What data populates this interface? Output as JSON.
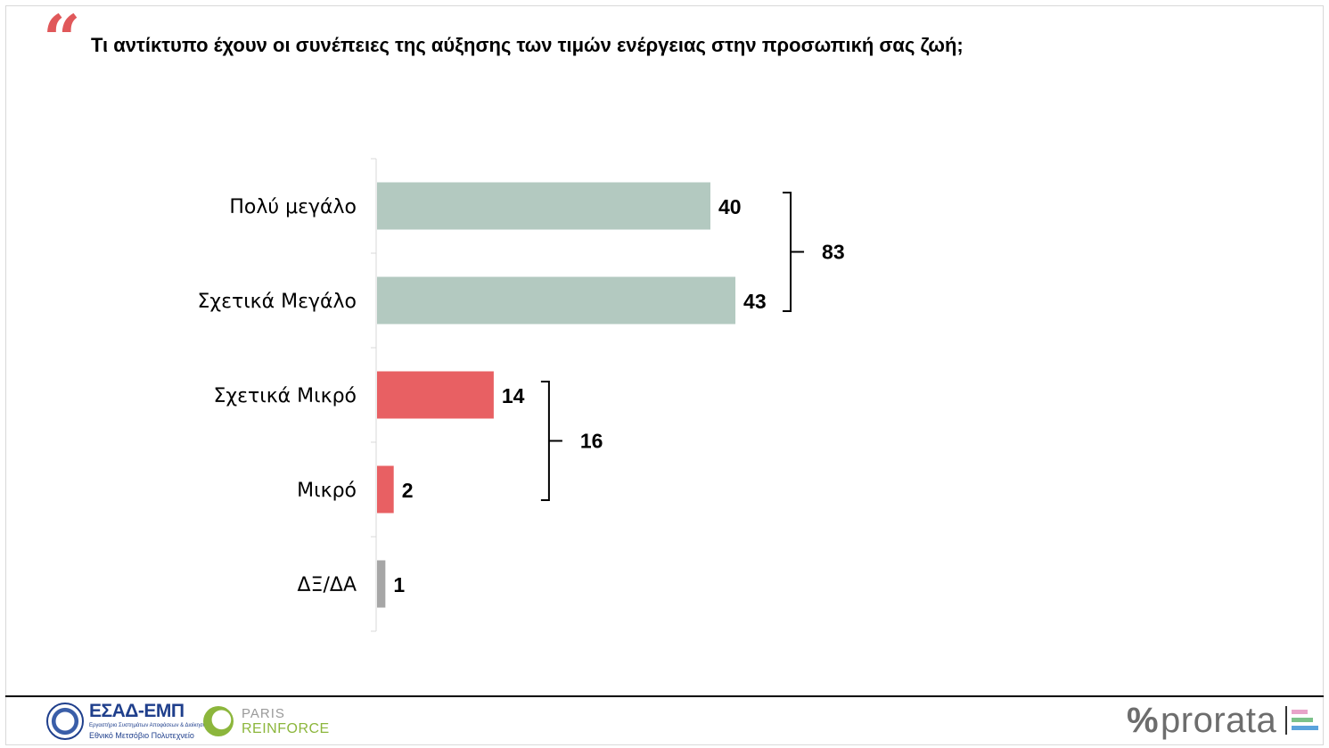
{
  "header": {
    "quote_glyph": "“",
    "title": "Τι αντίκτυπο έχουν οι συνέπειες της αύξησης των τιμών ενέργειας στην προσωπική σας ζωή;"
  },
  "chart_data": {
    "type": "bar",
    "orientation": "horizontal",
    "categories": [
      "Πολύ μεγάλο",
      "Σχετικά Μεγάλο",
      "Σχετικά Μικρό",
      "Μικρό",
      "ΔΞ/ΔΑ"
    ],
    "values": [
      40,
      43,
      14,
      2,
      1
    ],
    "colors": [
      "#b3c9c0",
      "#b3c9c0",
      "#e86063",
      "#e86063",
      "#a6a6a6"
    ],
    "value_labels": [
      "40",
      "43",
      "14",
      "2",
      "1"
    ],
    "groups": [
      {
        "categories": [
          "Πολύ μεγάλο",
          "Σχετικά Μεγάλο"
        ],
        "total": 83,
        "label": "83"
      },
      {
        "categories": [
          "Σχετικά Μικρό",
          "Μικρό"
        ],
        "total": 16,
        "label": "16"
      }
    ],
    "xlim": [
      0,
      100
    ],
    "grid": false,
    "legend": "none"
  },
  "footer": {
    "esad_title": "ΕΣΑΔ-ΕΜΠ",
    "esad_subtitle": "Εργαστήριο Συστημάτων Αποφάσεων & Διοίκησης",
    "esad_subtitle2": "Εθνικό Μετσόβιο Πολυτεχνείο",
    "paris_line1": "PARIS",
    "paris_line2": "REINFORCE",
    "prorata_symbol": "%",
    "prorata_word": "prorata",
    "prorata_stripe_colors": [
      "#e8a3c9",
      "#7cc28a",
      "#5aa3dc"
    ]
  }
}
